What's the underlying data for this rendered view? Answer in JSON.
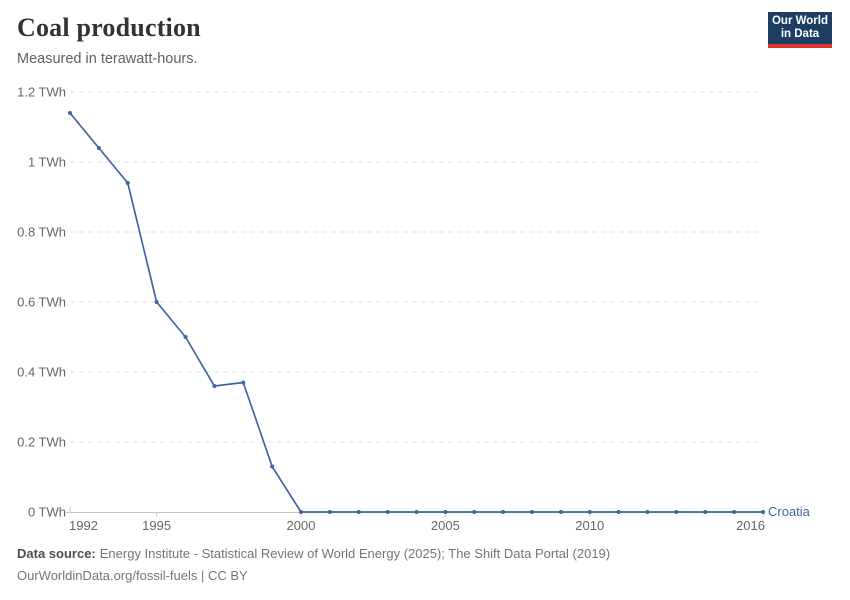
{
  "header": {
    "title": "Coal production",
    "subtitle": "Measured in terawatt-hours.",
    "logo": {
      "line1": "Our World",
      "line2": "in Data"
    }
  },
  "chart_data": {
    "type": "line",
    "title": "Coal production",
    "subtitle": "Measured in terawatt-hours.",
    "unit": "TWh",
    "grid": true,
    "x": [
      1992,
      1993,
      1994,
      1995,
      1996,
      1997,
      1998,
      1999,
      2000,
      2001,
      2002,
      2003,
      2004,
      2005,
      2006,
      2007,
      2008,
      2009,
      2010,
      2011,
      2012,
      2013,
      2014,
      2015,
      2016
    ],
    "series": [
      {
        "name": "Croatia",
        "values": [
          1.14,
          1.04,
          0.94,
          0.6,
          0.5,
          0.36,
          0.37,
          0.13,
          0,
          0,
          0,
          0,
          0,
          0,
          0,
          0,
          0,
          0,
          0,
          0,
          0,
          0,
          0,
          0,
          0
        ]
      }
    ],
    "ylim": [
      0,
      1.2
    ],
    "xlim": [
      1992,
      2016
    ],
    "xlabel": "",
    "ylabel": "",
    "legend_position": "right-end-of-line",
    "y_ticks": [
      {
        "value": 0,
        "label": "0 TWh"
      },
      {
        "value": 0.2,
        "label": "0.2 TWh"
      },
      {
        "value": 0.4,
        "label": "0.4 TWh"
      },
      {
        "value": 0.6,
        "label": "0.6 TWh"
      },
      {
        "value": 0.8,
        "label": "0.8 TWh"
      },
      {
        "value": 1,
        "label": "1 TWh"
      },
      {
        "value": 1.2,
        "label": "1.2 TWh"
      }
    ],
    "x_ticks": [
      "1992",
      "1995",
      "2000",
      "2005",
      "2010",
      "2016"
    ]
  },
  "colors": {
    "line": "#4165a2",
    "grid": "#e3e3e3",
    "axis": "#c4c4c4",
    "tick_text": "#666666",
    "logo_bg": "#1d3d63",
    "logo_red": "#dc352e"
  },
  "footer": {
    "source_label": "Data source:",
    "source_text": "Energy Institute - Statistical Review of World Energy (2025); The Shift Data Portal (2019)",
    "link_text": "OurWorldinData.org/fossil-fuels | CC BY"
  }
}
